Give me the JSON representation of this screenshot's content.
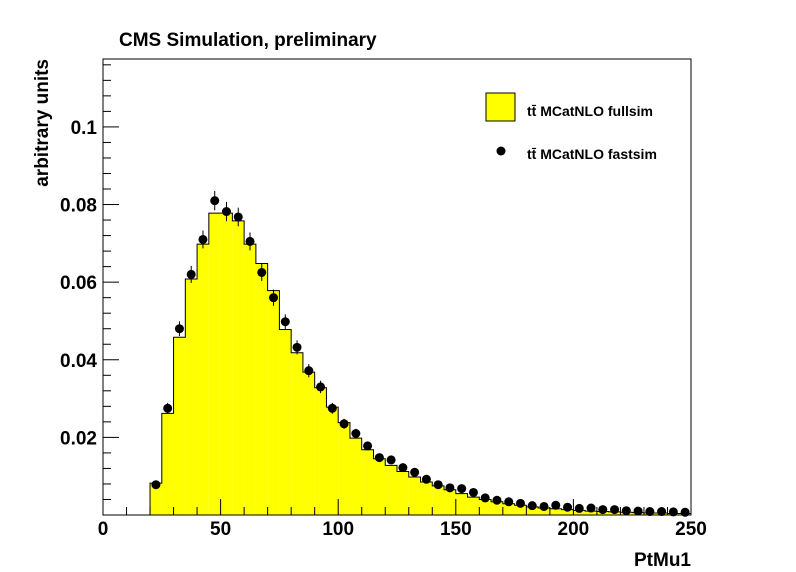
{
  "chart_data": {
    "type": "histogram",
    "title": "CMS Simulation, preliminary",
    "xlabel": "PtMu1",
    "ylabel": "arbitrary units",
    "xlim": [
      0,
      250
    ],
    "ylim": [
      0,
      0.1175
    ],
    "x_ticks": [
      "0",
      "50",
      "100",
      "150",
      "200",
      "250"
    ],
    "y_ticks": [
      "0.02",
      "0.04",
      "0.06",
      "0.08",
      "0.1"
    ],
    "y_tick_values": [
      0.02,
      0.04,
      0.06,
      0.08,
      0.1
    ],
    "bin_edges": [
      20,
      25,
      30,
      35,
      40,
      45,
      50,
      55,
      60,
      65,
      70,
      75,
      80,
      85,
      90,
      95,
      100,
      105,
      110,
      115,
      120,
      125,
      130,
      135,
      140,
      145,
      150,
      155,
      160,
      165,
      170,
      175,
      180,
      185,
      190,
      195,
      200,
      205,
      210,
      215,
      220,
      225,
      230,
      235,
      240,
      245,
      250
    ],
    "legend_placement": "top-right",
    "colors": {
      "fill": "#ffff00",
      "outline": "#000000",
      "marker": "#000000"
    },
    "series": [
      {
        "name": "tt̄ MCatNLO fullsim",
        "style": "filled-histogram",
        "values": [
          0.0082,
          0.0262,
          0.0458,
          0.0608,
          0.0698,
          0.0778,
          0.0778,
          0.0758,
          0.0698,
          0.0648,
          0.0578,
          0.0478,
          0.0418,
          0.0368,
          0.0328,
          0.0278,
          0.0238,
          0.0198,
          0.0168,
          0.0145,
          0.0128,
          0.0112,
          0.0098,
          0.0085,
          0.0075,
          0.0065,
          0.0055,
          0.0046,
          0.004,
          0.0034,
          0.0029,
          0.0025,
          0.0021,
          0.0018,
          0.0016,
          0.0014,
          0.0012,
          0.001,
          0.0009,
          0.0008,
          0.0007,
          0.0006,
          0.0005,
          0.0005,
          0.0004,
          0.0004
        ]
      },
      {
        "name": "tt̄ MCatNLO fastsim",
        "style": "markers-with-errors",
        "values": [
          0.0078,
          0.0275,
          0.048,
          0.062,
          0.071,
          0.081,
          0.0782,
          0.0768,
          0.0705,
          0.0625,
          0.056,
          0.0498,
          0.0432,
          0.0372,
          0.033,
          0.0275,
          0.0235,
          0.021,
          0.0178,
          0.0148,
          0.0142,
          0.0122,
          0.011,
          0.0092,
          0.0078,
          0.007,
          0.0068,
          0.0058,
          0.0044,
          0.0038,
          0.0034,
          0.003,
          0.0024,
          0.0022,
          0.0025,
          0.002,
          0.0017,
          0.0018,
          0.0014,
          0.0014,
          0.0011,
          0.001,
          0.0009,
          0.0009,
          0.0008,
          0.0007
        ],
        "errors": [
          0.0008,
          0.0014,
          0.0019,
          0.0022,
          0.0023,
          0.0025,
          0.0025,
          0.0024,
          0.0023,
          0.0022,
          0.0021,
          0.0019,
          0.0018,
          0.0017,
          0.0016,
          0.0014,
          0.0013,
          0.0012,
          0.0011,
          0.001,
          0.001,
          0.0009,
          0.0009,
          0.0008,
          0.0007,
          0.0007,
          0.0007,
          0.0006,
          0.0005,
          0.0005,
          0.0005,
          0.0004,
          0.0004,
          0.0004,
          0.0004,
          0.0004,
          0.0003,
          0.0003,
          0.0003,
          0.0003,
          0.0003,
          0.0003,
          0.0002,
          0.0002,
          0.0002,
          0.0002
        ]
      }
    ]
  }
}
